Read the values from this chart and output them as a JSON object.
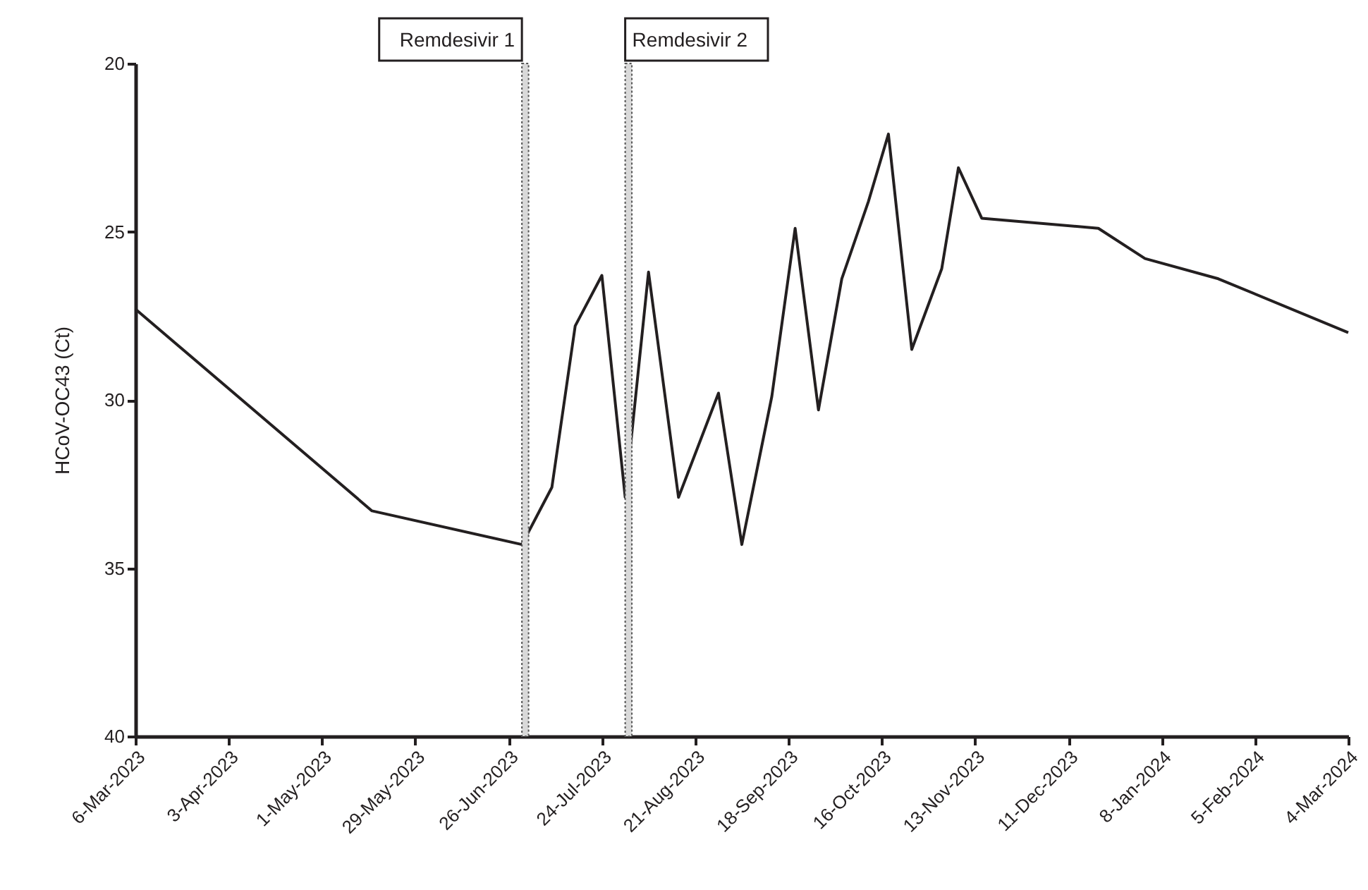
{
  "chart_data": {
    "type": "line",
    "ylabel": "HCoV-OC43 (Ct)",
    "x": [
      "2023-03-06",
      "2023-05-16",
      "2023-06-30",
      "2023-07-09",
      "2023-07-16",
      "2023-07-24",
      "2023-07-31",
      "2023-08-07",
      "2023-08-16",
      "2023-08-28",
      "2023-09-04",
      "2023-09-13",
      "2023-09-20",
      "2023-09-27",
      "2023-10-04",
      "2023-10-12",
      "2023-10-18",
      "2023-10-25",
      "2023-11-03",
      "2023-11-08",
      "2023-11-15",
      "2023-12-20",
      "2024-01-03",
      "2024-01-25",
      "2024-03-04"
    ],
    "series": [
      {
        "color": "#231f20",
        "values": [
          27.3,
          33.3,
          34.3,
          32.6,
          27.8,
          26.3,
          32.9,
          26.2,
          32.9,
          29.8,
          34.3,
          29.9,
          24.9,
          30.3,
          26.4,
          24.1,
          22.1,
          28.5,
          26.1,
          23.1,
          24.6,
          24.9,
          25.8,
          26.4,
          28.0
        ]
      }
    ],
    "xlim": [
      "2023-03-06",
      "2024-03-04"
    ],
    "xticks": [
      {
        "value": "2023-03-06",
        "label": "6-Mar-2023"
      },
      {
        "value": "2023-04-03",
        "label": "3-Apr-2023"
      },
      {
        "value": "2023-05-01",
        "label": "1-May-2023"
      },
      {
        "value": "2023-05-29",
        "label": "29-May-2023"
      },
      {
        "value": "2023-06-26",
        "label": "26-Jun-2023"
      },
      {
        "value": "2023-07-24",
        "label": "24-Jul-2023"
      },
      {
        "value": "2023-08-21",
        "label": "21-Aug-2023"
      },
      {
        "value": "2023-09-18",
        "label": "18-Sep-2023"
      },
      {
        "value": "2023-10-16",
        "label": "16-Oct-2023"
      },
      {
        "value": "2023-11-13",
        "label": "13-Nov-2023"
      },
      {
        "value": "2023-12-11",
        "label": "11-Dec-2023"
      },
      {
        "value": "2024-01-08",
        "label": "8-Jan-2024"
      },
      {
        "value": "2024-02-05",
        "label": "5-Feb-2024"
      },
      {
        "value": "2024-03-04",
        "label": "4-Mar-2024"
      }
    ],
    "ylim": [
      40,
      20
    ],
    "yticks": [
      20,
      25,
      30,
      35,
      40
    ],
    "bands": [
      {
        "axis": "x",
        "from": "2023-06-30",
        "to": "2023-07-02",
        "label": "Remdesivir 1",
        "color": "#d9d9d9"
      },
      {
        "axis": "x",
        "from": "2023-07-31",
        "to": "2023-08-02",
        "label": "Remdesivir 2",
        "color": "#d9d9d9"
      }
    ],
    "grid": false,
    "marker": "none",
    "line_style": "solid"
  }
}
